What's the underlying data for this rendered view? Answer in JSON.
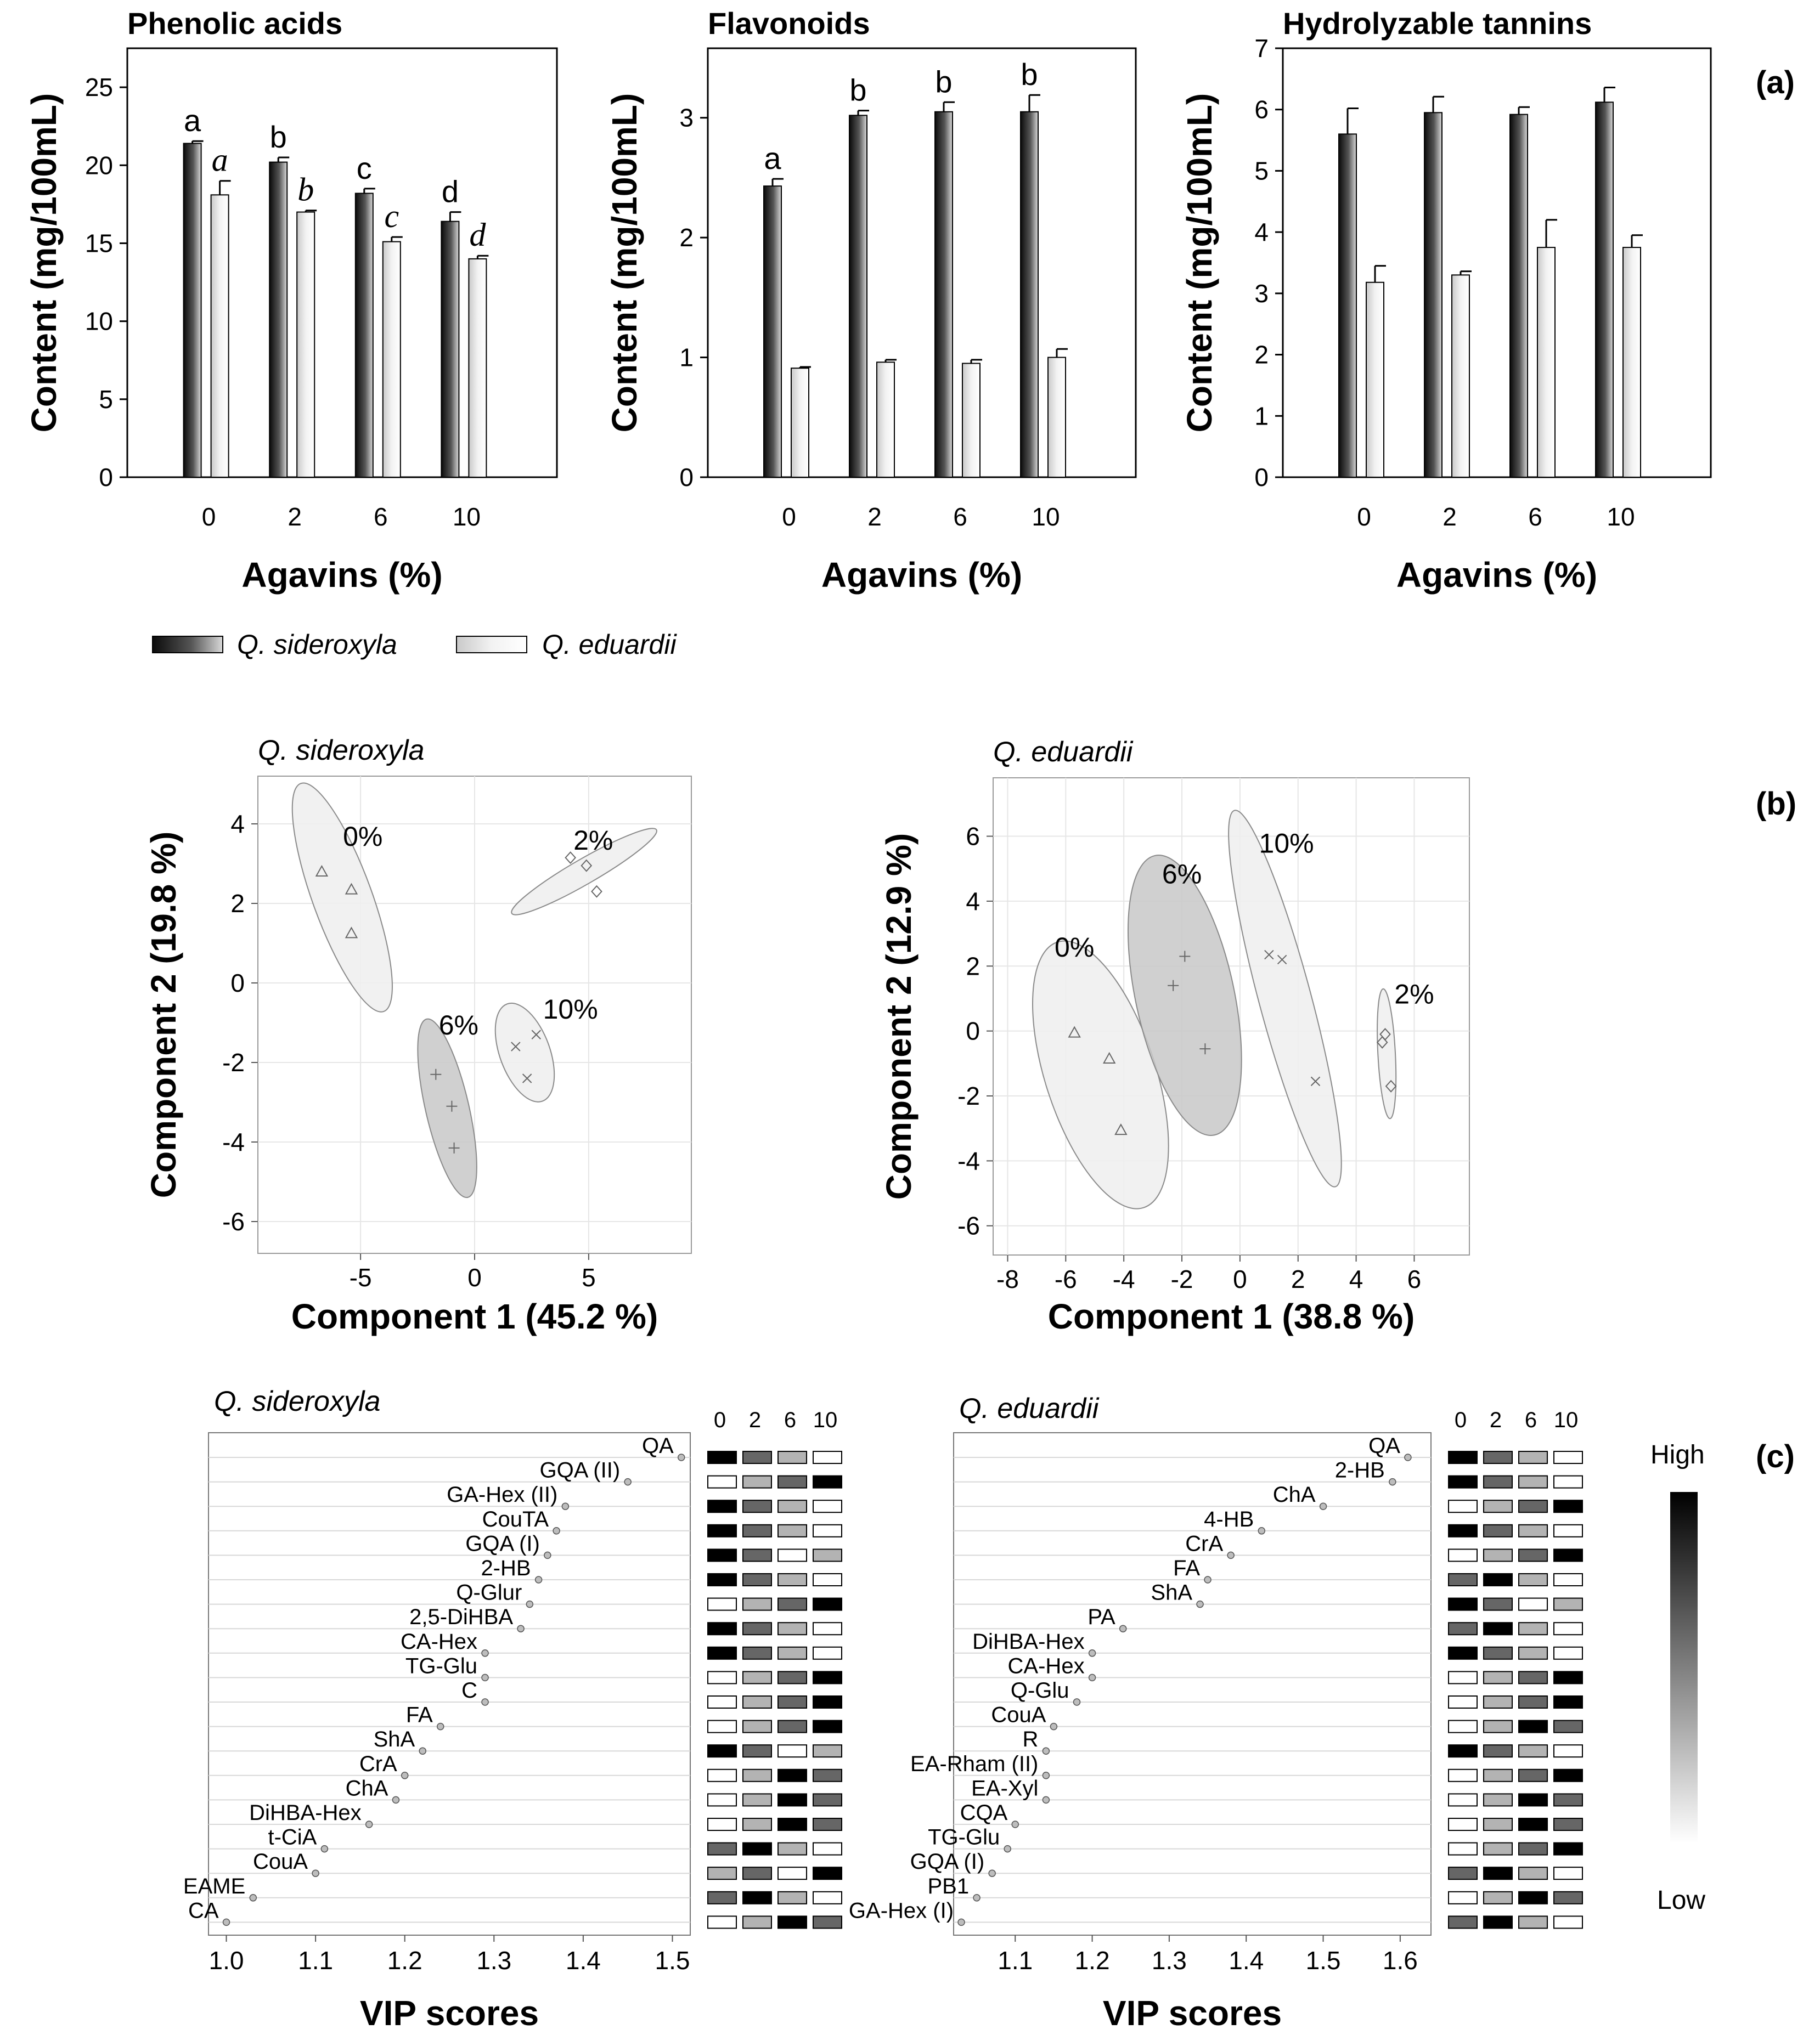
{
  "panel_labels": [
    "(a)",
    "(b)",
    "(c)"
  ],
  "legend": [
    "Q. sideroxyla",
    "Q. eduardii"
  ],
  "colors": {
    "dark_bar": "#333333",
    "light_bar": "#e6e6e6",
    "ellipse_light": "#eeeeee",
    "ellipse_dark": "#c8c8c8"
  },
  "chart_data": [
    {
      "type": "bar",
      "title": "Phenolic acids",
      "xlabel": "Agavins (%)",
      "ylabel": "Content (mg/100mL)",
      "categories": [
        "0",
        "2",
        "6",
        "10"
      ],
      "ylim": [
        0,
        27.5
      ],
      "yticks": [
        "0",
        "5",
        "10",
        "15",
        "20",
        "25"
      ],
      "series": [
        {
          "name": "Q. sideroxyla",
          "values": [
            21.4,
            20.2,
            18.2,
            16.4
          ],
          "errors": [
            0.15,
            0.3,
            0.3,
            0.6
          ],
          "letters": [
            "a",
            "b",
            "c",
            "d"
          ]
        },
        {
          "name": "Q. eduardii",
          "values": [
            18.1,
            17.0,
            15.1,
            14.0
          ],
          "errors": [
            0.9,
            0.1,
            0.3,
            0.2
          ],
          "letters": [
            "a",
            "b",
            "c",
            "d"
          ]
        }
      ]
    },
    {
      "type": "bar",
      "title": "Flavonoids",
      "xlabel": "Agavins (%)",
      "ylabel": "Content (mg/100mL)",
      "categories": [
        "0",
        "2",
        "6",
        "10"
      ],
      "ylim": [
        0,
        3.58
      ],
      "yticks": [
        "0",
        "1",
        "2",
        "3"
      ],
      "series": [
        {
          "name": "Q. sideroxyla",
          "values": [
            2.43,
            3.02,
            3.05,
            3.05
          ],
          "errors": [
            0.06,
            0.04,
            0.08,
            0.14
          ],
          "letters": [
            "a",
            "b",
            "b",
            "b"
          ]
        },
        {
          "name": "Q. eduardii",
          "values": [
            0.91,
            0.96,
            0.95,
            1.0
          ],
          "errors": [
            0.01,
            0.02,
            0.03,
            0.07
          ],
          "letters": [
            "",
            "",
            "",
            ""
          ]
        }
      ]
    },
    {
      "type": "bar",
      "title": "Hydrolyzable tannins",
      "xlabel": "Agavins (%)",
      "ylabel": "Content (mg/100mL)",
      "categories": [
        "0",
        "2",
        "6",
        "10"
      ],
      "ylim": [
        0,
        7
      ],
      "yticks": [
        "0",
        "1",
        "2",
        "3",
        "4",
        "5",
        "6",
        "7"
      ],
      "series": [
        {
          "name": "Q. sideroxyla",
          "values": [
            5.6,
            5.95,
            5.92,
            6.12
          ],
          "errors": [
            0.42,
            0.26,
            0.12,
            0.24
          ],
          "letters": [
            "",
            "",
            "",
            ""
          ]
        },
        {
          "name": "Q. eduardii",
          "values": [
            3.18,
            3.3,
            3.75,
            3.75
          ],
          "errors": [
            0.27,
            0.06,
            0.45,
            0.2
          ],
          "letters": [
            "",
            "",
            "",
            ""
          ]
        }
      ]
    },
    {
      "type": "scatter",
      "title": "Q. sideroxyla",
      "xlabel": "Component 1 (45.2 %)",
      "ylabel": "Component 2 (19.8 %)",
      "xlim": [
        -9.5,
        9.5
      ],
      "ylim": [
        -6.8,
        5.2
      ],
      "xticks": [
        -5,
        0,
        5
      ],
      "yticks": [
        -6,
        -4,
        -2,
        0,
        2,
        4
      ],
      "groups": [
        {
          "label": "0%",
          "marker": "triangle",
          "points": [
            [
              -6.7,
              2.8
            ],
            [
              -5.4,
              2.35
            ],
            [
              -5.4,
              1.25
            ]
          ],
          "ellipse": {
            "cx": -5.8,
            "cy": 2.15,
            "rx": 1.3,
            "ry": 3.05,
            "angle_deg": 20
          },
          "shade": "light",
          "label_at": [
            -4.9,
            3.7
          ]
        },
        {
          "label": "2%",
          "marker": "diamond",
          "points": [
            [
              4.2,
              3.15
            ],
            [
              4.9,
              2.95
            ],
            [
              5.35,
              2.3
            ]
          ],
          "ellipse": {
            "cx": 4.8,
            "cy": 2.8,
            "rx": 0.55,
            "ry": 2.1,
            "angle_deg": -60
          },
          "shade": "light",
          "label_at": [
            5.2,
            3.6
          ]
        },
        {
          "label": "6%",
          "marker": "plus",
          "points": [
            [
              -1.7,
              -2.3
            ],
            [
              -1.0,
              -3.1
            ],
            [
              -0.9,
              -4.15
            ]
          ],
          "ellipse": {
            "cx": -1.2,
            "cy": -3.15,
            "rx": 0.95,
            "ry": 2.3,
            "angle_deg": 13
          },
          "shade": "dark",
          "label_at": [
            -0.7,
            -1.05
          ]
        },
        {
          "label": "10%",
          "marker": "cross",
          "points": [
            [
              1.8,
              -1.6
            ],
            [
              2.7,
              -1.3
            ],
            [
              2.3,
              -2.4
            ]
          ],
          "ellipse": {
            "cx": 2.2,
            "cy": -1.75,
            "rx": 1.1,
            "ry": 1.3,
            "angle_deg": 20
          },
          "shade": "light",
          "label_at": [
            4.2,
            -0.65
          ]
        }
      ]
    },
    {
      "type": "scatter",
      "title": "Q. eduardii",
      "xlabel": "Component 1 (38.8 %)",
      "ylabel": "Component 2 (12.9 %)",
      "xlim": [
        -8.5,
        7.9
      ],
      "ylim": [
        -6.9,
        7.8
      ],
      "xticks": [
        -8,
        -6,
        -4,
        -2,
        0,
        2,
        4,
        6
      ],
      "yticks": [
        -6,
        -4,
        -2,
        0,
        2,
        4,
        6
      ],
      "groups": [
        {
          "label": "0%",
          "marker": "triangle",
          "points": [
            [
              -5.7,
              -0.05
            ],
            [
              -4.5,
              -0.85
            ],
            [
              -4.1,
              -3.05
            ]
          ],
          "ellipse": {
            "cx": -4.8,
            "cy": -1.35,
            "rx": 1.9,
            "ry": 4.3,
            "angle_deg": 18
          },
          "shade": "light",
          "label_at": [
            -5.7,
            2.6
          ]
        },
        {
          "label": "6%",
          "marker": "plus",
          "points": [
            [
              -1.9,
              2.3
            ],
            [
              -2.3,
              1.4
            ],
            [
              -1.2,
              -0.55
            ]
          ],
          "ellipse": {
            "cx": -1.9,
            "cy": 1.1,
            "rx": 1.7,
            "ry": 4.4,
            "angle_deg": 12
          },
          "shade": "dark",
          "label_at": [
            -2.0,
            4.85
          ]
        },
        {
          "label": "10%",
          "marker": "cross",
          "points": [
            [
              1.0,
              2.35
            ],
            [
              1.45,
              2.2
            ],
            [
              2.6,
              -1.55
            ]
          ],
          "ellipse": {
            "cx": 1.55,
            "cy": 1.0,
            "rx": 0.9,
            "ry": 6.0,
            "angle_deg": 15
          },
          "shade": "light",
          "label_at": [
            1.6,
            5.8
          ]
        },
        {
          "label": "2%",
          "marker": "diamond",
          "points": [
            [
              5.0,
              -0.1
            ],
            [
              4.9,
              -0.35
            ],
            [
              5.2,
              -1.7
            ]
          ],
          "ellipse": {
            "cx": 5.05,
            "cy": -0.7,
            "rx": 0.3,
            "ry": 2.0,
            "angle_deg": 3
          },
          "shade": "light",
          "label_at": [
            6.0,
            1.15
          ]
        }
      ]
    },
    {
      "type": "scatter",
      "subtype": "vip",
      "title": "Q. sideroxyla",
      "xlabel": "VIP scores",
      "xlim": [
        0.98,
        1.52
      ],
      "xticks": [
        "1.0",
        "1.1",
        "1.2",
        "1.3",
        "1.4",
        "1.5"
      ],
      "heatmap_columns": [
        "0",
        "2",
        "6",
        "10"
      ],
      "items": [
        {
          "label": "QA",
          "vip": 1.51,
          "heat": [
            1.0,
            0.6,
            0.3,
            0.0
          ]
        },
        {
          "label": "GQA (II)",
          "vip": 1.45,
          "heat": [
            0.0,
            0.3,
            0.6,
            1.0
          ]
        },
        {
          "label": "GA-Hex (II)",
          "vip": 1.38,
          "heat": [
            1.0,
            0.6,
            0.3,
            0.0
          ]
        },
        {
          "label": "CouTA",
          "vip": 1.37,
          "heat": [
            1.0,
            0.6,
            0.3,
            0.0
          ]
        },
        {
          "label": "GQA (I)",
          "vip": 1.36,
          "heat": [
            1.0,
            0.6,
            0.0,
            0.3
          ]
        },
        {
          "label": "2-HB",
          "vip": 1.35,
          "heat": [
            1.0,
            0.6,
            0.3,
            0.0
          ]
        },
        {
          "label": "Q-Glur",
          "vip": 1.34,
          "heat": [
            0.0,
            0.3,
            0.6,
            1.0
          ]
        },
        {
          "label": "2,5-DiHBA",
          "vip": 1.33,
          "heat": [
            1.0,
            0.6,
            0.3,
            0.0
          ]
        },
        {
          "label": "CA-Hex",
          "vip": 1.29,
          "heat": [
            1.0,
            0.6,
            0.3,
            0.0
          ]
        },
        {
          "label": "TG-Glu",
          "vip": 1.29,
          "heat": [
            0.0,
            0.3,
            0.6,
            1.0
          ]
        },
        {
          "label": "C",
          "vip": 1.29,
          "heat": [
            0.0,
            0.3,
            0.6,
            1.0
          ]
        },
        {
          "label": "FA",
          "vip": 1.24,
          "heat": [
            0.0,
            0.3,
            0.6,
            1.0
          ]
        },
        {
          "label": "ShA",
          "vip": 1.22,
          "heat": [
            1.0,
            0.6,
            0.0,
            0.3
          ]
        },
        {
          "label": "CrA",
          "vip": 1.2,
          "heat": [
            0.0,
            0.3,
            1.0,
            0.6
          ]
        },
        {
          "label": "ChA",
          "vip": 1.19,
          "heat": [
            0.0,
            0.3,
            1.0,
            0.6
          ]
        },
        {
          "label": "DiHBA-Hex",
          "vip": 1.16,
          "heat": [
            0.0,
            0.3,
            1.0,
            0.6
          ]
        },
        {
          "label": "t-CiA",
          "vip": 1.11,
          "heat": [
            0.6,
            1.0,
            0.3,
            0.0
          ]
        },
        {
          "label": "CouA",
          "vip": 1.1,
          "heat": [
            0.3,
            0.6,
            0.0,
            1.0
          ]
        },
        {
          "label": "EAME",
          "vip": 1.03,
          "heat": [
            0.6,
            1.0,
            0.3,
            0.0
          ]
        },
        {
          "label": "CA",
          "vip": 1.0,
          "heat": [
            0.0,
            0.3,
            1.0,
            0.6
          ]
        }
      ]
    },
    {
      "type": "scatter",
      "subtype": "vip",
      "title": "Q. eduardii",
      "xlabel": "VIP scores",
      "xlim": [
        1.02,
        1.64
      ],
      "xticks": [
        "1.1",
        "1.2",
        "1.3",
        "1.4",
        "1.5",
        "1.6"
      ],
      "heatmap_columns": [
        "0",
        "2",
        "6",
        "10"
      ],
      "items": [
        {
          "label": "QA",
          "vip": 1.61,
          "heat": [
            1.0,
            0.6,
            0.3,
            0.0
          ]
        },
        {
          "label": "2-HB",
          "vip": 1.59,
          "heat": [
            1.0,
            0.6,
            0.3,
            0.0
          ]
        },
        {
          "label": "ChA",
          "vip": 1.5,
          "heat": [
            0.0,
            0.3,
            0.6,
            1.0
          ]
        },
        {
          "label": "4-HB",
          "vip": 1.42,
          "heat": [
            1.0,
            0.6,
            0.3,
            0.0
          ]
        },
        {
          "label": "CrA",
          "vip": 1.38,
          "heat": [
            0.0,
            0.3,
            0.6,
            1.0
          ]
        },
        {
          "label": "FA",
          "vip": 1.35,
          "heat": [
            0.6,
            1.0,
            0.3,
            0.0
          ]
        },
        {
          "label": "ShA",
          "vip": 1.34,
          "heat": [
            1.0,
            0.6,
            0.0,
            0.3
          ]
        },
        {
          "label": "PA",
          "vip": 1.24,
          "heat": [
            0.6,
            1.0,
            0.3,
            0.0
          ]
        },
        {
          "label": "DiHBA-Hex",
          "vip": 1.2,
          "heat": [
            1.0,
            0.6,
            0.3,
            0.0
          ]
        },
        {
          "label": "CA-Hex",
          "vip": 1.2,
          "heat": [
            0.0,
            0.3,
            0.6,
            1.0
          ]
        },
        {
          "label": "Q-Glu",
          "vip": 1.18,
          "heat": [
            0.0,
            0.3,
            0.6,
            1.0
          ]
        },
        {
          "label": "CouA",
          "vip": 1.15,
          "heat": [
            0.0,
            0.3,
            1.0,
            0.6
          ]
        },
        {
          "label": "R",
          "vip": 1.14,
          "heat": [
            1.0,
            0.6,
            0.3,
            0.0
          ]
        },
        {
          "label": "EA-Rham (II)",
          "vip": 1.14,
          "heat": [
            0.0,
            0.3,
            0.6,
            1.0
          ]
        },
        {
          "label": "EA-Xyl",
          "vip": 1.14,
          "heat": [
            0.0,
            0.3,
            1.0,
            0.6
          ]
        },
        {
          "label": "CQA",
          "vip": 1.1,
          "heat": [
            0.0,
            0.3,
            1.0,
            0.6
          ]
        },
        {
          "label": "TG-Glu",
          "vip": 1.09,
          "heat": [
            0.0,
            0.3,
            0.6,
            1.0
          ]
        },
        {
          "label": "GQA (I)",
          "vip": 1.07,
          "heat": [
            0.6,
            1.0,
            0.3,
            0.0
          ]
        },
        {
          "label": "PB1",
          "vip": 1.05,
          "heat": [
            0.0,
            0.3,
            1.0,
            0.6
          ]
        },
        {
          "label": "GA-Hex (I)",
          "vip": 1.03,
          "heat": [
            0.6,
            1.0,
            0.3,
            0.0
          ]
        }
      ]
    }
  ],
  "color_scale": {
    "high": "High",
    "low": "Low"
  }
}
